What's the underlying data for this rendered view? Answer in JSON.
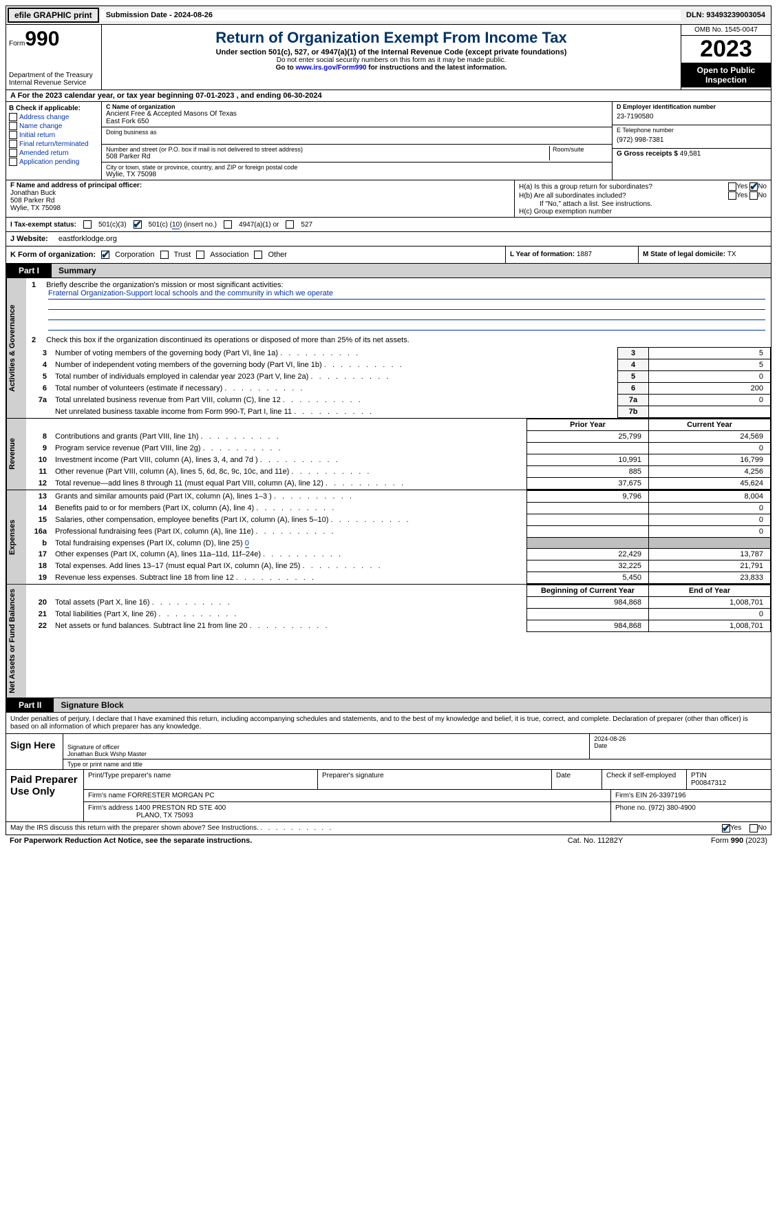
{
  "topbar": {
    "efile": "efile GRAPHIC print",
    "submission": "Submission Date - 2024-08-26",
    "dln": "DLN: 93493239003054"
  },
  "header": {
    "form_word": "Form",
    "form_num": "990",
    "dept": "Department of the Treasury Internal Revenue Service",
    "title": "Return of Organization Exempt From Income Tax",
    "sub": "Under section 501(c), 527, or 4947(a)(1) of the Internal Revenue Code (except private foundations)",
    "note1": "Do not enter social security numbers on this form as it may be made public.",
    "note2_pre": "Go to ",
    "note2_link": "www.irs.gov/Form990",
    "note2_post": " for instructions and the latest information.",
    "omb": "OMB No. 1545-0047",
    "year": "2023",
    "inspection": "Open to Public Inspection"
  },
  "row_a": "A For the 2023 calendar year, or tax year beginning 07-01-2023   , and ending 06-30-2024",
  "box_b": {
    "title": "B Check if applicable:",
    "items": [
      "Address change",
      "Name change",
      "Initial return",
      "Final return/terminated",
      "Amended return",
      "Application pending"
    ]
  },
  "box_c": {
    "name_label": "C Name of organization",
    "name": "Ancient Free & Accepted Masons Of Texas",
    "name2": "East Fork 650",
    "dba_label": "Doing business as",
    "street_label": "Number and street (or P.O. box if mail is not delivered to street address)",
    "room_label": "Room/suite",
    "street": "508 Parker Rd",
    "city_label": "City or town, state or province, country, and ZIP or foreign postal code",
    "city": "Wylie, TX  75098"
  },
  "box_d": {
    "label": "D Employer identification number",
    "value": "23-7190580"
  },
  "box_e": {
    "label": "E Telephone number",
    "value": "(972) 998-7381"
  },
  "box_g": {
    "label": "G Gross receipts $ ",
    "value": "49,581"
  },
  "box_f": {
    "label": "F  Name and address of principal officer:",
    "name": "Jonathan Buck",
    "street": "508 Parker Rd",
    "city": "Wylie, TX  75098"
  },
  "box_h": {
    "a": "H(a)  Is this a group return for subordinates?",
    "b": "H(b)  Are all subordinates included?",
    "b_note": "If \"No,\" attach a list. See instructions.",
    "c": "H(c)  Group exemption number",
    "yes": "Yes",
    "no": "No"
  },
  "tax_status": {
    "label": "I   Tax-exempt status:",
    "c3": "501(c)(3)",
    "c_pre": "501(c) (",
    "c_num": "10",
    "c_post": ") (insert no.)",
    "a1": "4947(a)(1) or",
    "s527": "527"
  },
  "row_j": {
    "label": "J   Website:",
    "value": "eastforklodge.org"
  },
  "row_k": {
    "label": "K Form of organization:",
    "corp": "Corporation",
    "trust": "Trust",
    "assoc": "Association",
    "other": "Other",
    "l_label": "L Year of formation: ",
    "l_val": "1887",
    "m_label": "M State of legal domicile: ",
    "m_val": "TX"
  },
  "parts": {
    "p1_tab": "Part I",
    "p1_title": "Summary",
    "p2_tab": "Part II",
    "p2_title": "Signature Block"
  },
  "side_labels": {
    "gov": "Activities & Governance",
    "rev": "Revenue",
    "exp": "Expenses",
    "net": "Net Assets or Fund Balances"
  },
  "mission": {
    "num": "1",
    "label": "Briefly describe the organization's mission or most significant activities:",
    "text": "Fraternal Organization-Support local schools and the community in which we operate"
  },
  "line2": {
    "num": "2",
    "text": "Check this box       if the organization discontinued its operations or disposed of more than 25% of its net assets."
  },
  "gov_lines": [
    {
      "n": "3",
      "d": "Number of voting members of the governing body (Part VI, line 1a)",
      "b": "3",
      "v": "5"
    },
    {
      "n": "4",
      "d": "Number of independent voting members of the governing body (Part VI, line 1b)",
      "b": "4",
      "v": "5"
    },
    {
      "n": "5",
      "d": "Total number of individuals employed in calendar year 2023 (Part V, line 2a)",
      "b": "5",
      "v": "0"
    },
    {
      "n": "6",
      "d": "Total number of volunteers (estimate if necessary)",
      "b": "6",
      "v": "200"
    },
    {
      "n": "7a",
      "d": "Total unrelated business revenue from Part VIII, column (C), line 12",
      "b": "7a",
      "v": "0"
    },
    {
      "n": "",
      "d": "Net unrelated business taxable income from Form 990-T, Part I, line 11",
      "b": "7b",
      "v": ""
    }
  ],
  "col_hdrs": {
    "prior": "Prior Year",
    "current": "Current Year",
    "begin": "Beginning of Current Year",
    "end": "End of Year"
  },
  "rev_lines": [
    {
      "n": "8",
      "d": "Contributions and grants (Part VIII, line 1h)",
      "p": "25,799",
      "c": "24,569"
    },
    {
      "n": "9",
      "d": "Program service revenue (Part VIII, line 2g)",
      "p": "",
      "c": "0"
    },
    {
      "n": "10",
      "d": "Investment income (Part VIII, column (A), lines 3, 4, and 7d )",
      "p": "10,991",
      "c": "16,799"
    },
    {
      "n": "11",
      "d": "Other revenue (Part VIII, column (A), lines 5, 6d, 8c, 9c, 10c, and 11e)",
      "p": "885",
      "c": "4,256"
    },
    {
      "n": "12",
      "d": "Total revenue—add lines 8 through 11 (must equal Part VIII, column (A), line 12)",
      "p": "37,675",
      "c": "45,624"
    }
  ],
  "exp_lines": [
    {
      "n": "13",
      "d": "Grants and similar amounts paid (Part IX, column (A), lines 1–3 )",
      "p": "9,796",
      "c": "8,004"
    },
    {
      "n": "14",
      "d": "Benefits paid to or for members (Part IX, column (A), line 4)",
      "p": "",
      "c": "0"
    },
    {
      "n": "15",
      "d": "Salaries, other compensation, employee benefits (Part IX, column (A), lines 5–10)",
      "p": "",
      "c": "0"
    },
    {
      "n": "16a",
      "d": "Professional fundraising fees (Part IX, column (A), line 11e)",
      "p": "",
      "c": "0"
    }
  ],
  "line16b": {
    "n": "b",
    "d": "Total fundraising expenses (Part IX, column (D), line 25) ",
    "v": "0"
  },
  "exp_lines2": [
    {
      "n": "17",
      "d": "Other expenses (Part IX, column (A), lines 11a–11d, 11f–24e)",
      "p": "22,429",
      "c": "13,787"
    },
    {
      "n": "18",
      "d": "Total expenses. Add lines 13–17 (must equal Part IX, column (A), line 25)",
      "p": "32,225",
      "c": "21,791"
    },
    {
      "n": "19",
      "d": "Revenue less expenses. Subtract line 18 from line 12",
      "p": "5,450",
      "c": "23,833"
    }
  ],
  "net_lines": [
    {
      "n": "20",
      "d": "Total assets (Part X, line 16)",
      "p": "984,868",
      "c": "1,008,701"
    },
    {
      "n": "21",
      "d": "Total liabilities (Part X, line 26)",
      "p": "",
      "c": "0"
    },
    {
      "n": "22",
      "d": "Net assets or fund balances. Subtract line 21 from line 20",
      "p": "984,868",
      "c": "1,008,701"
    }
  ],
  "sig_decl": "Under penalties of perjury, I declare that I have examined this return, including accompanying schedules and statements, and to the best of my knowledge and belief, it is true, correct, and complete. Declaration of preparer (other than officer) is based on all information of which preparer has any knowledge.",
  "sign": {
    "here": "Sign Here",
    "sig_label": "Signature of officer",
    "date_label": "Date",
    "date": "2024-08-26",
    "name": "Jonathan Buck  Wshp Master",
    "name_label": "Type or print name and title"
  },
  "prep": {
    "label": "Paid Preparer Use Only",
    "col1": "Print/Type preparer's name",
    "col2": "Preparer's signature",
    "col3": "Date",
    "col4": "Check       if self-employed",
    "col5_label": "PTIN",
    "col5": "P00847312",
    "firm_label": "Firm's name    ",
    "firm": "FORRESTER MORGAN PC",
    "ein_label": "Firm's EIN ",
    "ein": "26-3397196",
    "addr_label": "Firm's address ",
    "addr1": "1400 PRESTON RD STE 400",
    "addr2": "PLANO, TX  75093",
    "phone_label": "Phone no. ",
    "phone": "(972) 380-4900"
  },
  "discuss": {
    "text": "May the IRS discuss this return with the preparer shown above? See Instructions.",
    "yes": "Yes",
    "no": "No"
  },
  "footer": {
    "left": "For Paperwork Reduction Act Notice, see the separate instructions.",
    "mid": "Cat. No. 11282Y",
    "right_pre": "Form ",
    "right_num": "990",
    "right_post": " (2023)"
  }
}
